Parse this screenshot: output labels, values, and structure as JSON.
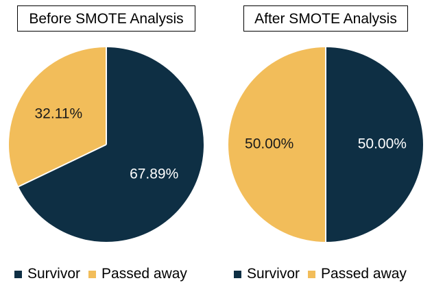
{
  "colors": {
    "survivor": "#0e2f44",
    "passed_away": "#f2bd5a",
    "label_dark_bg": "#ffffff",
    "label_light_bg": "#1a1a1a"
  },
  "chart_data": [
    {
      "type": "pie",
      "title": "Before SMOTE Analysis",
      "slices": [
        {
          "name": "Survivor",
          "value": 67.89,
          "label": "67.89%"
        },
        {
          "name": "Passed away",
          "value": 32.11,
          "label": "32.11%"
        }
      ],
      "legend": [
        "Survivor",
        "Passed away"
      ],
      "legend_position": "bottom"
    },
    {
      "type": "pie",
      "title": "After SMOTE Analysis",
      "slices": [
        {
          "name": "Survivor",
          "value": 50.0,
          "label": "50.00%"
        },
        {
          "name": "Passed away",
          "value": 50.0,
          "label": "50.00%"
        }
      ],
      "legend": [
        "Survivor",
        "Passed away"
      ],
      "legend_position": "bottom"
    }
  ]
}
